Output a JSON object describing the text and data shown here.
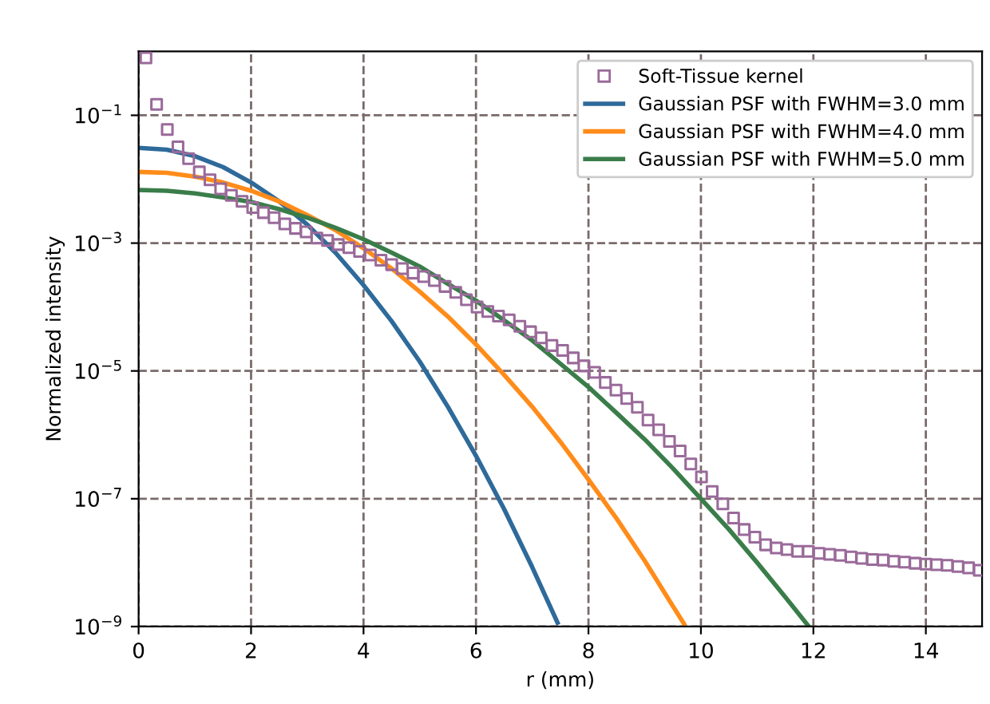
{
  "chart_data": {
    "type": "line",
    "xlabel": "r (mm)",
    "ylabel": "Normalized intensity",
    "log": "y",
    "grid": true,
    "legend": "top right",
    "xlim": [
      0,
      15
    ],
    "xticks": [
      0,
      2,
      4,
      6,
      8,
      10,
      12,
      14
    ],
    "ylim": [
      1e-09,
      1
    ],
    "yticks": [
      {
        "value": 1e-09,
        "label": "10$^{−9}$"
      },
      {
        "value": 1e-07,
        "label": "10$^{−7}$"
      },
      {
        "value": 1e-05,
        "label": "10$^{−5}$"
      },
      {
        "value": 0.001,
        "label": "10$^{−3}$"
      },
      {
        "value": 0.1,
        "label": "10$^{−1}$"
      }
    ],
    "series": [
      {
        "name": "Soft-Tissue kernel",
        "type": "scatter",
        "marker": "square",
        "color": "#9a6a9a",
        "x": [
          0.13,
          0.32,
          0.51,
          0.7,
          0.89,
          1.08,
          1.27,
          1.46,
          1.65,
          1.84,
          2.03,
          2.22,
          2.41,
          2.6,
          2.79,
          2.98,
          3.17,
          3.36,
          3.55,
          3.74,
          3.93,
          4.12,
          4.31,
          4.5,
          4.69,
          4.88,
          5.07,
          5.26,
          5.45,
          5.64,
          5.83,
          6.02,
          6.21,
          6.4,
          6.59,
          6.78,
          6.97,
          7.16,
          7.35,
          7.54,
          7.73,
          7.92,
          8.11,
          8.3,
          8.49,
          8.68,
          8.87,
          9.06,
          9.25,
          9.44,
          9.63,
          9.82,
          10.01,
          10.2,
          10.39,
          10.58,
          10.77,
          10.96,
          11.15,
          11.34,
          11.53,
          11.72,
          11.91,
          12.1,
          12.29,
          12.48,
          12.67,
          12.86,
          13.05,
          13.24,
          13.43,
          13.62,
          13.81,
          14.0,
          14.19,
          14.38,
          14.57,
          14.76,
          14.95
        ],
        "values": [
          0.79,
          0.148,
          0.06,
          0.032,
          0.021,
          0.013,
          0.0098,
          0.0071,
          0.0056,
          0.0045,
          0.0036,
          0.003,
          0.0025,
          0.002,
          0.0017,
          0.0015,
          0.0012,
          0.0011,
          0.00095,
          0.00085,
          0.00074,
          0.00065,
          0.00054,
          0.00046,
          0.0004,
          0.00034,
          0.0003,
          0.00026,
          0.00021,
          0.00017,
          0.00013,
          0.0001,
          8.5e-05,
          7.2e-05,
          6.3e-05,
          5e-05,
          4.1e-05,
          3.3e-05,
          2.5e-05,
          2.1e-05,
          1.6e-05,
          1.2e-05,
          9.5e-06,
          6.6e-06,
          5e-06,
          3.7e-06,
          2.7e-06,
          1.7e-06,
          1.2e-06,
          7.9e-07,
          5.6e-07,
          3.5e-07,
          2.2e-07,
          1.3e-07,
          8.3e-08,
          5e-08,
          3.3e-08,
          2.5e-08,
          1.9e-08,
          1.7e-08,
          1.6e-08,
          1.5e-08,
          1.5e-08,
          1.4e-08,
          1.35e-08,
          1.3e-08,
          1.23e-08,
          1.17e-08,
          1.12e-08,
          1.1e-08,
          1.05e-08,
          1.02e-08,
          9.8e-09,
          9.5e-09,
          9.3e-09,
          9.1e-09,
          8.7e-09,
          8.3e-09,
          7.6e-09
        ]
      },
      {
        "name": "Gaussian PSF with FWHM=3.0 mm",
        "color": "#2e6a9a",
        "x": [
          0,
          0.5,
          1,
          1.5,
          2,
          2.5,
          3,
          3.5,
          4,
          4.5,
          5,
          5.5,
          6,
          6.5,
          7,
          7.45
        ],
        "values": [
          0.031,
          0.029,
          0.023,
          0.0155,
          0.0089,
          0.0045,
          0.00195,
          0.00071,
          0.00022,
          6e-05,
          1.4e-05,
          2.75e-06,
          4.7e-07,
          6.9e-08,
          8.5e-09,
          1.15e-09
        ]
      },
      {
        "name": "Gaussian PSF with FWHM=4.0 mm",
        "color": "#ff8c1a",
        "x": [
          0,
          0.5,
          1,
          1.5,
          2,
          2.5,
          3,
          3.5,
          4,
          4.5,
          5,
          5.5,
          6,
          6.5,
          7,
          7.5,
          8,
          8.5,
          9,
          9.5,
          9.7
        ],
        "values": [
          0.013,
          0.0126,
          0.011,
          0.0089,
          0.0066,
          0.0045,
          0.00275,
          0.0016,
          0.00083,
          0.0004,
          0.000174,
          7.1e-05,
          2.6e-05,
          8.7e-06,
          2.75e-06,
          7.8e-07,
          2e-07,
          4.9e-08,
          1.07e-08,
          2.1e-09,
          1.1e-09
        ]
      },
      {
        "name": "Gaussian PSF with FWHM=5.0 mm",
        "color": "#3a7d4a",
        "x": [
          0,
          0.5,
          1,
          1.5,
          2,
          2.5,
          3,
          3.5,
          4,
          4.5,
          5,
          5.5,
          6,
          6.5,
          7,
          7.5,
          8,
          8.5,
          9,
          9.5,
          10,
          10.5,
          11,
          11.5,
          11.9
        ],
        "values": [
          0.0068,
          0.0066,
          0.006,
          0.0052,
          0.0044,
          0.0034,
          0.0025,
          0.00174,
          0.00115,
          0.00071,
          0.00043,
          0.00023,
          0.000126,
          6.2e-05,
          3e-05,
          1.3e-05,
          5.6e-06,
          2.2e-06,
          8.5e-07,
          3e-07,
          1e-07,
          3.3e-08,
          1e-08,
          2.9e-09,
          1.05e-09
        ]
      }
    ]
  }
}
